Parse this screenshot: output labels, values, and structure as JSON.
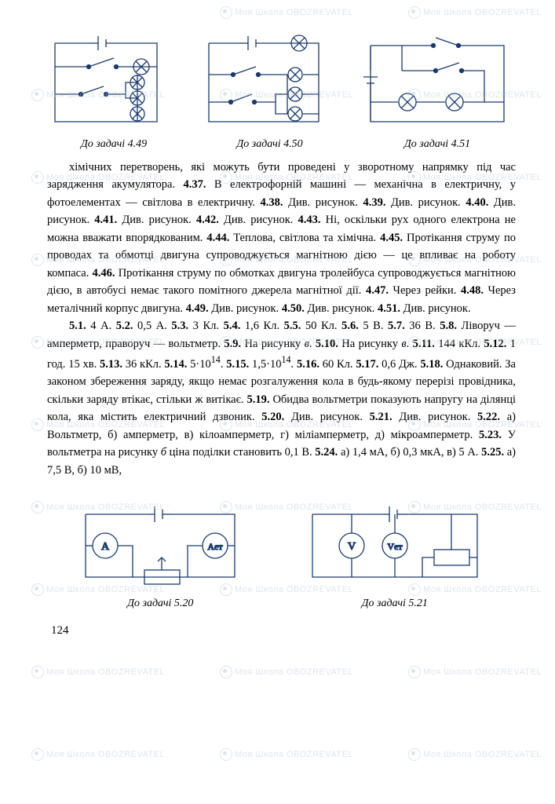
{
  "page_number": "124",
  "watermark_text": "Моя Школа  OBOZREVATEL",
  "top_diagrams": [
    {
      "caption": "До задачі 4.49"
    },
    {
      "caption": "До задачі 4.50"
    },
    {
      "caption": "До задачі 4.51"
    }
  ],
  "bottom_diagrams": [
    {
      "caption": "До задачі 5.20",
      "meter1": "A",
      "meter2": "Aет"
    },
    {
      "caption": "До задачі 5.21",
      "meter1": "V",
      "meter2": "Vет"
    }
  ],
  "paragraphs": [
    "хімічних перетворень, які можуть бути проведені у зворотному напрямку під час зарядження акумулятора. <b>4.37.</b> В електрофорній машині — механічна в електричну, у фотоелементах — світлова в електричну. <b>4.38.</b> Див. рисунок. <b>4.39.</b> Див. рисунок. <b>4.40.</b> Див. рисунок. <b>4.41.</b> Див. рисунок. <b>4.42.</b> Див. рисунок. <b>4.43.</b> Ні, оскільки рух одного електрона не можна вважати впорядкованим. <b>4.44.</b> Теплова, світлова та хімічна. <b>4.45.</b> Протікання струму по проводах та обмотці двигуна супроводжується магнітною дією — це впливає на роботу компаса. <b>4.46.</b> Протікання струму по обмотках двигуна тролейбуса супроводжується магнітною дією, в автобусі немає такого помітного джерела магнітної дії. <b>4.47.</b> Через рейки. <b>4.48.</b> Через металічний корпус двигуна. <b>4.49.</b> Див. рисунок. <b>4.50.</b> Див. рисунок. <b>4.51.</b> Див. рисунок.",
    "<b>5.1.</b> 4 А. <b>5.2.</b> 0,5 А. <b>5.3.</b> 3 Кл. <b>5.4.</b> 1,6 Кл. <b>5.5.</b> 50 Кл. <b>5.6.</b> 5 В. <b>5.7.</b> 36 В. <b>5.8.</b> Ліворуч — амперметр, праворуч — вольтметр. <b>5.9.</b> На рисунку <i>в</i>. <b>5.10.</b> На рисунку <i>в</i>. <b>5.11.</b> 144 кКл. <b>5.12.</b> 1 год. 15 хв. <b>5.13.</b> 36 кКл. <b>5.14.</b> 5·10<sup>14</sup>. <b>5.15.</b> 1,5·10<sup>14</sup>. <b>5.16.</b> 60 Кл. <b>5.17.</b> 0,6 Дж. <b>5.18.</b> Однаковий. За законом збереження заряду, якщо немає розгалуження кола в будь-якому перерізі провідника, скільки заряду втікає, стільки ж витікає. <b>5.19.</b> Обидва вольтметри показують напругу на ділянці кола, яка містить електричний дзвоник. <b>5.20.</b> Див. рисунок. <b>5.21.</b> Див. рисунок. <b>5.22.</b> а) Вольтметр, б) амперметр, в) кілоамперметр, г) міліамперметр, д) мікроамперметр. <b>5.23.</b> У вольтметра на рисунку <i>б</i> ціна поділки становить 0,1 В. <b>5.24.</b> а) 1,4 мА, б) 0,3 мкА, в) 5 А. <b>5.25.</b> а) 7,5 В, б) 10 мВ,"
  ],
  "circuit_style": {
    "stroke": "#1a3a6e",
    "stroke_width": 1.3,
    "fill": "none"
  }
}
